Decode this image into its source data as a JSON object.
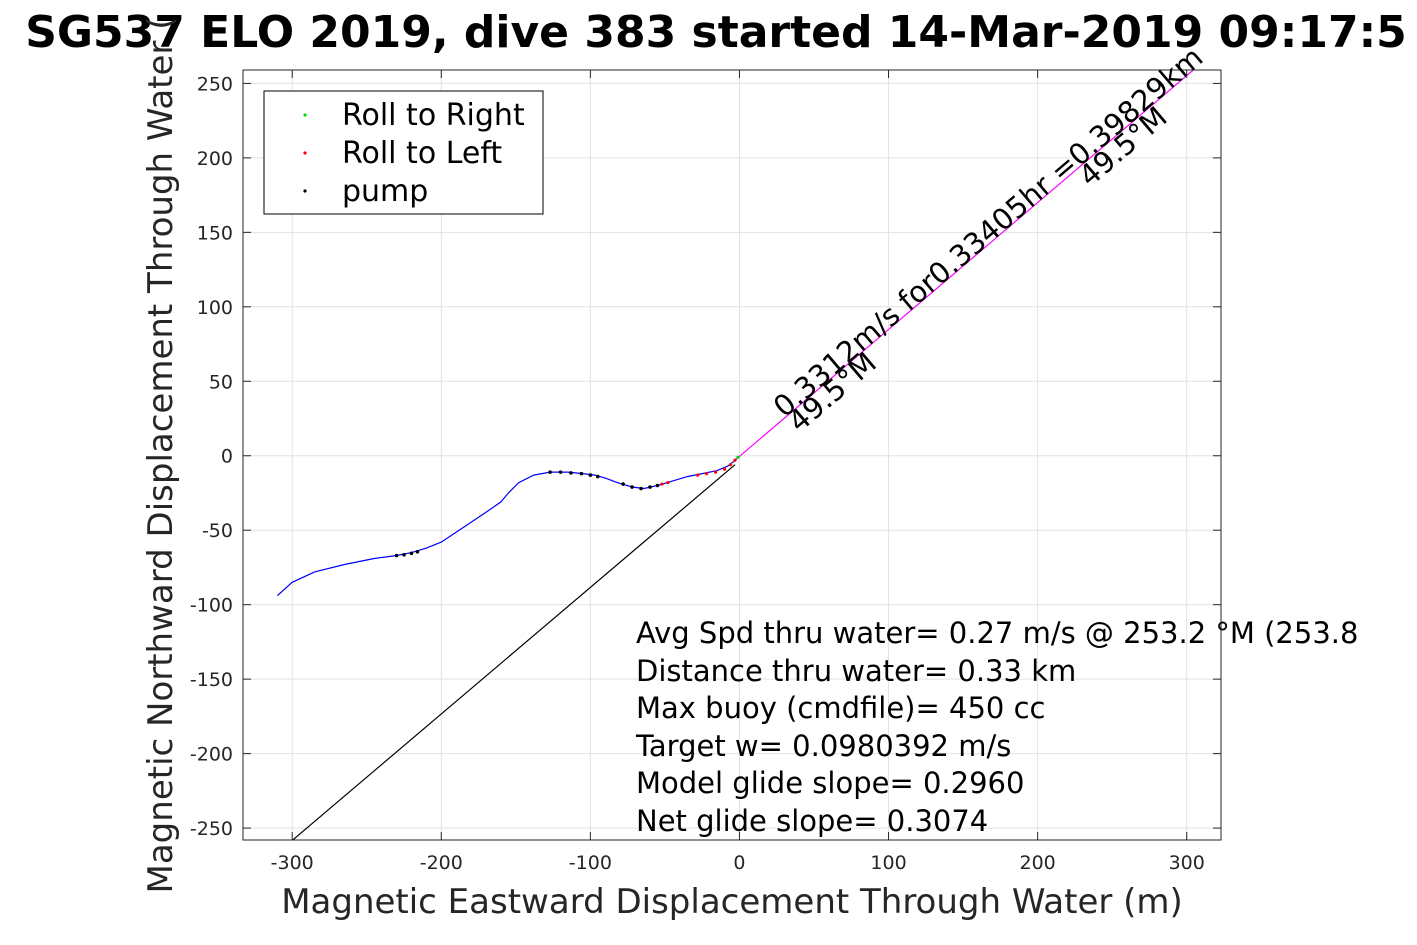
{
  "chart_data": {
    "type": "line",
    "title": "SG537 ELO 2019, dive 383 started 14-Mar-2019 09:17:5",
    "xlabel": "Magnetic Eastward Displacement Through Water (m)",
    "ylabel": "Magnetic Northward Displacement Through Water (",
    "xlim": [
      -333,
      323
    ],
    "ylim": [
      -258,
      259
    ],
    "x_ticks": [
      -300,
      -200,
      -100,
      0,
      100,
      200,
      300
    ],
    "y_ticks": [
      -250,
      -200,
      -150,
      -100,
      -50,
      0,
      50,
      100,
      150,
      200,
      250
    ],
    "grid": true,
    "legend": {
      "placement": "top-left",
      "entries": [
        {
          "label": "Roll to Right",
          "color": "#00dd00"
        },
        {
          "label": "Roll to Left",
          "color": "#ff0000"
        },
        {
          "label": "pump",
          "color": "#000000"
        }
      ]
    },
    "track": {
      "name": "displacement through water",
      "color": "#0000ff",
      "points": [
        [
          -310,
          -94
        ],
        [
          -300,
          -85
        ],
        [
          -285,
          -78
        ],
        [
          -265,
          -73
        ],
        [
          -245,
          -69
        ],
        [
          -230,
          -67
        ],
        [
          -220,
          -65
        ],
        [
          -210,
          -62
        ],
        [
          -200,
          -58
        ],
        [
          -185,
          -48
        ],
        [
          -170,
          -38
        ],
        [
          -160,
          -31
        ],
        [
          -155,
          -25
        ],
        [
          -148,
          -18
        ],
        [
          -138,
          -13
        ],
        [
          -127,
          -11
        ],
        [
          -115,
          -11
        ],
        [
          -105,
          -12
        ],
        [
          -97,
          -13
        ],
        [
          -90,
          -15
        ],
        [
          -82,
          -18
        ],
        [
          -72,
          -21
        ],
        [
          -64,
          -22
        ],
        [
          -55,
          -20
        ],
        [
          -45,
          -17
        ],
        [
          -35,
          -14
        ],
        [
          -25,
          -12
        ],
        [
          -15,
          -10
        ],
        [
          -8,
          -7
        ],
        [
          -4,
          -4
        ],
        [
          -2,
          -2
        ]
      ]
    },
    "roll_left_points": [
      [
        -28,
        -13
      ],
      [
        -22,
        -12
      ],
      [
        -16,
        -11
      ],
      [
        -10,
        -9
      ],
      [
        -6,
        -6
      ],
      [
        -3,
        -3
      ],
      [
        -48,
        -18
      ],
      [
        -52,
        -19
      ]
    ],
    "roll_right_points": [
      [
        -1,
        -1
      ]
    ],
    "pump_points": [
      [
        -230,
        -67
      ],
      [
        -225,
        -66.5
      ],
      [
        -220,
        -65.5
      ],
      [
        -216,
        -64.5
      ],
      [
        -127,
        -11
      ],
      [
        -120,
        -11
      ],
      [
        -113,
        -11.5
      ],
      [
        -106,
        -12
      ],
      [
        -100,
        -13
      ],
      [
        -95,
        -14
      ],
      [
        -78,
        -19
      ],
      [
        -72,
        -21
      ],
      [
        -66,
        -22
      ],
      [
        -60,
        -21
      ],
      [
        -55,
        -20
      ]
    ],
    "heading_line": {
      "color": "#ff00ff",
      "points": [
        [
          -3,
          -3
        ],
        [
          315,
          268
        ]
      ]
    },
    "net_line": {
      "color": "#000000",
      "points": [
        [
          -3,
          -6
        ],
        [
          -302,
          -260
        ]
      ]
    },
    "annotations": [
      {
        "text": "0.3312m/s for0.33405hr =0.39829km",
        "x": 30,
        "y": 25
      },
      {
        "text": "49.5°M",
        "x": 40,
        "y": 15
      },
      {
        "text": "49.5°M",
        "x": 235,
        "y": 180
      }
    ]
  },
  "stats": [
    "Avg Spd thru water=  0.27 m/s @ 253.2 °M (253.8",
    "Distance thru water=  0.33 km",
    "Max buoy (cmdfile)= 450 cc",
    "Target w= 0.0980392 m/s",
    "Model glide slope= 0.2960",
    "Net glide slope= 0.3074"
  ]
}
